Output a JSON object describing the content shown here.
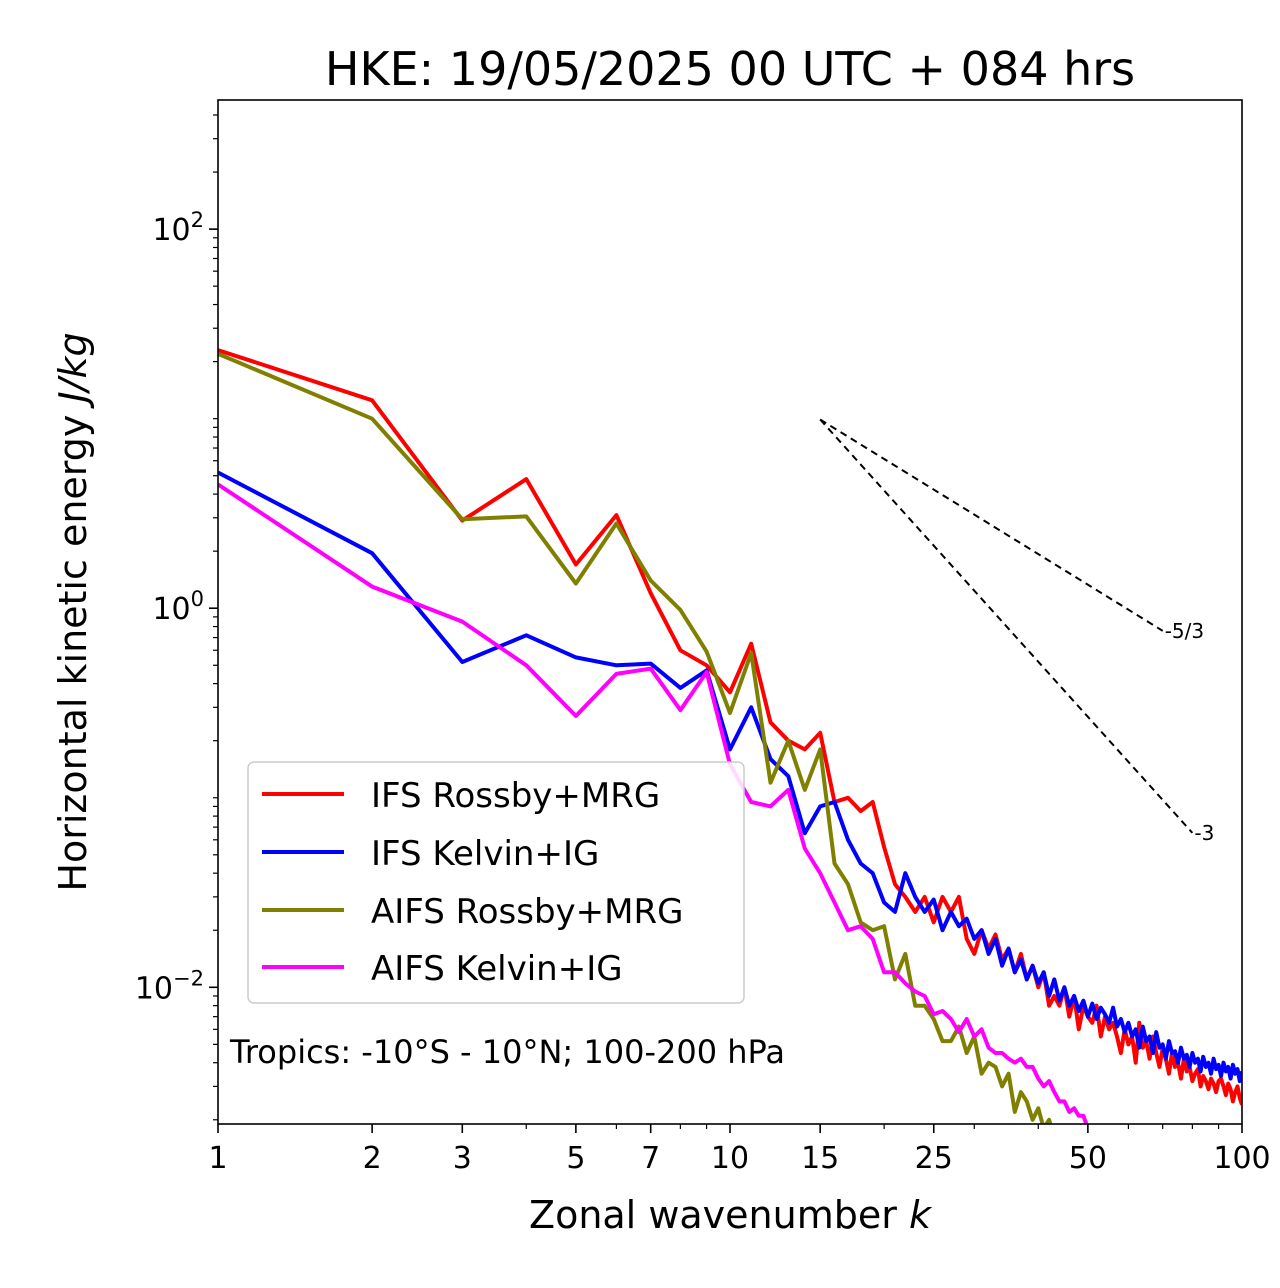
{
  "chart_data": {
    "type": "line",
    "title": "HKE: 19/05/2025 00 UTC + 084 hrs",
    "xlabel": "Zonal wavenumber",
    "xlabel_var": "k",
    "ylabel": "Horizontal kinetic energy",
    "ylabel_unit": "J/kg",
    "xscale": "log",
    "yscale": "log",
    "xlim": [
      1,
      100
    ],
    "ylim": [
      0.0019,
      480
    ],
    "x_ticks": [
      1,
      2,
      3,
      5,
      7,
      10,
      15,
      25,
      50,
      100
    ],
    "y_ticks": [
      {
        "value": 0.01,
        "base": "10",
        "exp": "−2"
      },
      {
        "value": 1,
        "base": "10",
        "exp": "0"
      },
      {
        "value": 100,
        "base": "10",
        "exp": "2"
      }
    ],
    "grid": false,
    "legend_position": "lower-left",
    "annotation": "Tropics: -10°S - 10°N; 100-200 hPa",
    "reference_slopes": [
      {
        "label": "-5/3",
        "slope": -1.6667,
        "x_start": 15,
        "y_start": 9.9,
        "x_end": 70
      },
      {
        "label": "-3",
        "slope": -3,
        "x_start": 15,
        "y_start": 9.9,
        "x_end": 80
      }
    ],
    "series": [
      {
        "name": "IFS Rossby+MRG",
        "color": "#ff0000",
        "x": [
          1,
          2,
          3,
          4,
          5,
          6,
          7,
          8,
          9,
          10,
          11,
          12,
          13,
          14,
          15,
          16,
          17,
          18,
          19,
          20,
          21,
          22,
          23,
          24,
          25,
          26,
          27,
          28,
          29,
          30,
          31,
          32,
          33,
          34,
          35,
          36,
          37,
          38,
          39,
          40,
          41,
          42,
          43,
          44,
          45,
          46,
          47,
          48,
          49,
          50,
          51,
          52,
          53,
          54,
          55,
          56,
          57,
          58,
          59,
          60,
          61,
          62,
          63,
          64,
          65,
          66,
          67,
          68,
          69,
          70,
          71,
          72,
          73,
          74,
          75,
          76,
          77,
          78,
          79,
          80,
          81,
          82,
          83,
          84,
          85,
          86,
          87,
          88,
          89,
          90,
          91,
          92,
          93,
          94,
          95,
          96,
          97,
          98,
          99,
          100
        ],
        "y": [
          23,
          12.5,
          2.9,
          4.8,
          1.7,
          3.1,
          1.2,
          0.6,
          0.5,
          0.36,
          0.65,
          0.25,
          0.2,
          0.18,
          0.22,
          0.095,
          0.1,
          0.085,
          0.095,
          0.055,
          0.035,
          0.03,
          0.025,
          0.03,
          0.022,
          0.03,
          0.025,
          0.03,
          0.018,
          0.015,
          0.02,
          0.016,
          0.019,
          0.014,
          0.016,
          0.012,
          0.015,
          0.011,
          0.013,
          0.01,
          0.012,
          0.008,
          0.009,
          0.008,
          0.01,
          0.007,
          0.009,
          0.006,
          0.008,
          0.007,
          0.0065,
          0.008,
          0.0055,
          0.007,
          0.006,
          0.0065,
          0.0055,
          0.0045,
          0.006,
          0.005,
          0.0055,
          0.004,
          0.0065,
          0.0048,
          0.0052,
          0.0042,
          0.0055,
          0.0045,
          0.0038,
          0.0048,
          0.0042,
          0.0035,
          0.0045,
          0.0038,
          0.004,
          0.0033,
          0.0042,
          0.0036,
          0.0038,
          0.0032,
          0.0035,
          0.0037,
          0.003,
          0.0034,
          0.0032,
          0.0029,
          0.0033,
          0.0031,
          0.0028,
          0.0032,
          0.0033,
          0.003,
          0.0027,
          0.0031,
          0.0029,
          0.0025,
          0.0028,
          0.003,
          0.0026,
          0.0024
        ]
      },
      {
        "name": "IFS Kelvin+IG",
        "color": "#0000ff",
        "x": [
          1,
          2,
          3,
          4,
          5,
          6,
          7,
          8,
          9,
          10,
          11,
          12,
          13,
          14,
          15,
          16,
          17,
          18,
          19,
          20,
          21,
          22,
          23,
          24,
          25,
          26,
          27,
          28,
          29,
          30,
          31,
          32,
          33,
          34,
          35,
          36,
          37,
          38,
          39,
          40,
          41,
          42,
          43,
          44,
          45,
          46,
          47,
          48,
          49,
          50,
          51,
          52,
          53,
          54,
          55,
          56,
          57,
          58,
          59,
          60,
          61,
          62,
          63,
          64,
          65,
          66,
          67,
          68,
          69,
          70,
          71,
          72,
          73,
          74,
          75,
          76,
          77,
          78,
          79,
          80,
          81,
          82,
          83,
          84,
          85,
          86,
          87,
          88,
          89,
          90,
          91,
          92,
          93,
          94,
          95,
          96,
          97,
          98,
          99,
          100
        ],
        "y": [
          5.2,
          1.95,
          0.52,
          0.72,
          0.55,
          0.5,
          0.51,
          0.38,
          0.47,
          0.18,
          0.3,
          0.16,
          0.13,
          0.065,
          0.09,
          0.095,
          0.06,
          0.045,
          0.04,
          0.028,
          0.025,
          0.04,
          0.03,
          0.025,
          0.029,
          0.02,
          0.025,
          0.021,
          0.023,
          0.018,
          0.02,
          0.015,
          0.018,
          0.013,
          0.016,
          0.012,
          0.014,
          0.011,
          0.013,
          0.0105,
          0.012,
          0.009,
          0.011,
          0.0085,
          0.01,
          0.008,
          0.009,
          0.0075,
          0.0085,
          0.007,
          0.0082,
          0.0068,
          0.0078,
          0.0072,
          0.0065,
          0.0078,
          0.0062,
          0.0068,
          0.0058,
          0.0065,
          0.0055,
          0.006,
          0.0048,
          0.0062,
          0.0052,
          0.0055,
          0.0045,
          0.0058,
          0.0048,
          0.005,
          0.0042,
          0.0052,
          0.0045,
          0.0046,
          0.004,
          0.0048,
          0.0042,
          0.0044,
          0.0038,
          0.0045,
          0.004,
          0.0042,
          0.0036,
          0.0043,
          0.0038,
          0.004,
          0.0035,
          0.0042,
          0.0037,
          0.0039,
          0.0034,
          0.004,
          0.0036,
          0.0038,
          0.0033,
          0.0039,
          0.0035,
          0.0037,
          0.0032,
          0.0036
        ]
      },
      {
        "name": "AIFS Rossby+MRG",
        "color": "#808000",
        "x": [
          1,
          2,
          3,
          4,
          5,
          6,
          7,
          8,
          9,
          10,
          11,
          12,
          13,
          14,
          15,
          16,
          17,
          18,
          19,
          20,
          21,
          22,
          23,
          24,
          25,
          26,
          27,
          28,
          29,
          30,
          31,
          32,
          33,
          34,
          35,
          36,
          37,
          38,
          39,
          40,
          41,
          42,
          43,
          44,
          45,
          46
        ],
        "y": [
          22,
          10,
          2.95,
          3.05,
          1.35,
          2.8,
          1.4,
          0.98,
          0.59,
          0.28,
          0.58,
          0.12,
          0.2,
          0.11,
          0.18,
          0.045,
          0.035,
          0.022,
          0.02,
          0.021,
          0.011,
          0.015,
          0.008,
          0.008,
          0.0068,
          0.0052,
          0.0052,
          0.0062,
          0.0045,
          0.0055,
          0.0035,
          0.004,
          0.0038,
          0.003,
          0.0035,
          0.0022,
          0.0028,
          0.0025,
          0.002,
          0.0023,
          0.0018,
          0.002,
          0.0016,
          0.0017,
          0.0014,
          0.0012
        ]
      },
      {
        "name": "AIFS Kelvin+IG",
        "color": "#ff00ff",
        "x": [
          1,
          2,
          3,
          4,
          5,
          6,
          7,
          8,
          9,
          10,
          11,
          12,
          13,
          14,
          15,
          16,
          17,
          18,
          19,
          20,
          21,
          22,
          23,
          24,
          25,
          26,
          27,
          28,
          29,
          30,
          31,
          32,
          33,
          34,
          35,
          36,
          37,
          38,
          39,
          40,
          41,
          42,
          43,
          44,
          45,
          46,
          47,
          48,
          49,
          50,
          51,
          52,
          53,
          54,
          55,
          56
        ],
        "y": [
          4.5,
          1.3,
          0.85,
          0.5,
          0.27,
          0.45,
          0.48,
          0.29,
          0.46,
          0.15,
          0.095,
          0.09,
          0.11,
          0.054,
          0.04,
          0.028,
          0.02,
          0.021,
          0.018,
          0.012,
          0.012,
          0.0105,
          0.0095,
          0.009,
          0.0072,
          0.0075,
          0.0068,
          0.0058,
          0.0068,
          0.0055,
          0.006,
          0.0048,
          0.0045,
          0.0045,
          0.0042,
          0.004,
          0.0042,
          0.0038,
          0.0038,
          0.0033,
          0.003,
          0.0032,
          0.0028,
          0.0025,
          0.0025,
          0.0022,
          0.0023,
          0.0021,
          0.0021,
          0.0018,
          0.0018,
          0.0016,
          0.0015,
          0.0013,
          0.0014,
          0.0012
        ]
      }
    ]
  }
}
